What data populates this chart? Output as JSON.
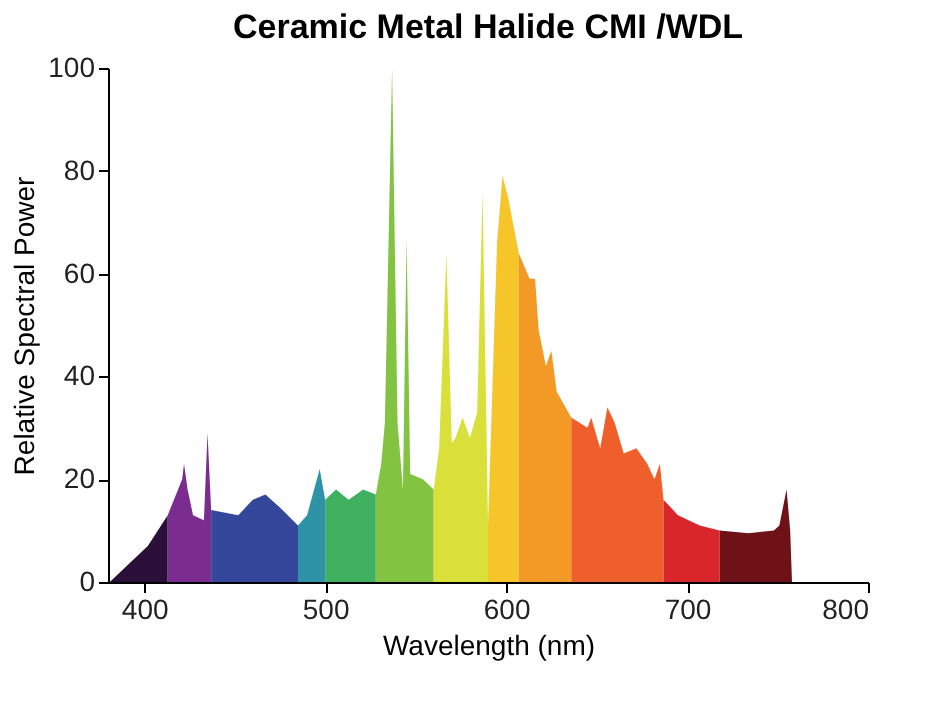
{
  "chart_data": {
    "type": "area",
    "title": "Ceramic Metal Halide CMI /WDL",
    "xlabel": "Wavelength (nm)",
    "ylabel": "Relative Spectral Power",
    "xlim": [
      380,
      800
    ],
    "xticks": [
      400,
      500,
      600,
      700,
      800
    ],
    "ylim": [
      0,
      100
    ],
    "yticks": [
      0,
      20,
      40,
      60,
      80,
      100
    ],
    "grid": false,
    "legend": false,
    "series": [
      {
        "color": "#2a1038",
        "x": [
          381,
          390,
          402,
          413
        ],
        "values": [
          0,
          3,
          7,
          13
        ]
      },
      {
        "color": "#7b2c8f",
        "x": [
          413,
          421,
          422,
          424,
          427,
          433,
          435,
          437
        ],
        "values": [
          13,
          20,
          23,
          18,
          13,
          12,
          29,
          14
        ]
      },
      {
        "color": "#34479a",
        "x": [
          437,
          452,
          460,
          467,
          475,
          485
        ],
        "values": [
          14,
          13,
          16,
          17,
          14.5,
          11
        ]
      },
      {
        "color": "#2f93a8",
        "x": [
          485,
          490,
          497,
          500
        ],
        "values": [
          11,
          13,
          22,
          16
        ]
      },
      {
        "color": "#3fb060",
        "x": [
          500,
          506,
          513,
          521,
          528
        ],
        "values": [
          16,
          18,
          16,
          18,
          17
        ]
      },
      {
        "color": "#82c341",
        "x": [
          528,
          531,
          533,
          537,
          540,
          543,
          545,
          547,
          554,
          560
        ],
        "values": [
          17,
          23,
          31,
          100,
          31,
          18,
          67,
          21,
          20,
          18
        ]
      },
      {
        "color": "#d9e03a",
        "x": [
          560,
          563,
          567,
          570,
          572,
          576,
          580,
          584,
          587,
          589,
          590
        ],
        "values": [
          18,
          26,
          64,
          27,
          28,
          32,
          28,
          33,
          76,
          33,
          11
        ]
      },
      {
        "color": "#f5c52a",
        "x": [
          590,
          592,
          595,
          598,
          601,
          607
        ],
        "values": [
          11,
          33,
          66,
          79,
          75,
          64
        ]
      },
      {
        "color": "#f39a26",
        "x": [
          607,
          613,
          616,
          618,
          622,
          625,
          628,
          636
        ],
        "values": [
          64,
          59,
          59,
          49,
          42,
          45,
          37,
          32
        ]
      },
      {
        "color": "#ef5f2b",
        "x": [
          636,
          645,
          647,
          652,
          656,
          660,
          665,
          672,
          678,
          682,
          685,
          687
        ],
        "values": [
          32,
          30,
          32,
          26,
          34,
          31,
          25,
          26,
          23,
          20,
          23,
          16
        ]
      },
      {
        "color": "#d9262b",
        "x": [
          687,
          695,
          707,
          718
        ],
        "values": [
          16,
          13,
          11,
          10
        ]
      },
      {
        "color": "#6e1218",
        "x": [
          718,
          734,
          748,
          751,
          755,
          757,
          758
        ],
        "values": [
          10,
          9.5,
          10,
          11,
          18,
          10,
          0
        ]
      }
    ]
  }
}
